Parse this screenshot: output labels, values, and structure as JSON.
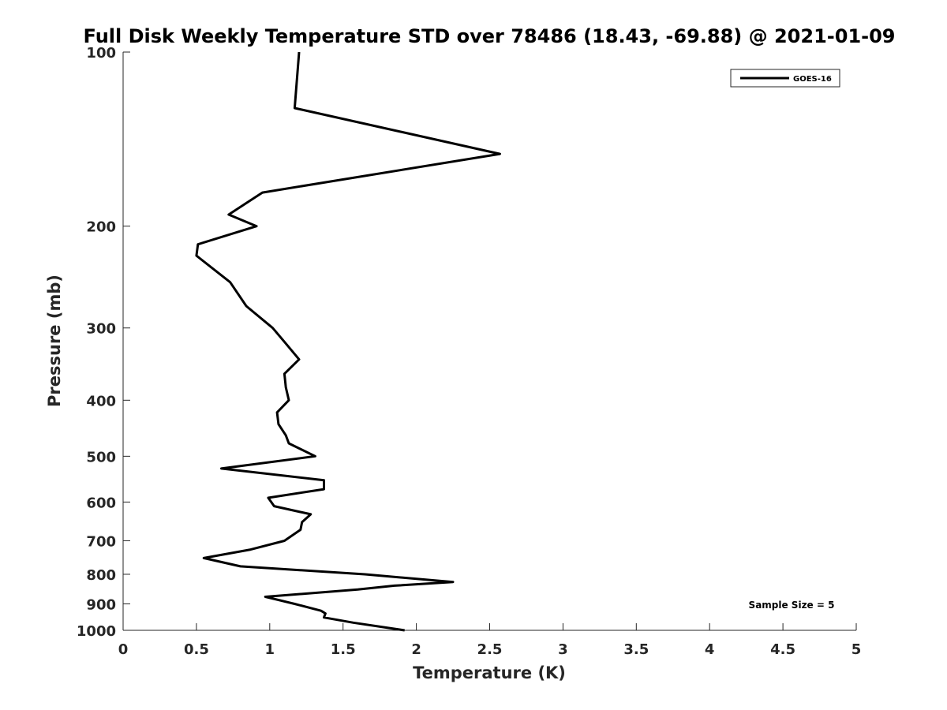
{
  "chart_data": {
    "type": "line",
    "title": "Full Disk Weekly Temperature STD over 78486 (18.43, -69.88) @ 2021-01-09",
    "xlabel": "Temperature (K)",
    "ylabel": "Pressure (mb)",
    "xlim": [
      0,
      5
    ],
    "ylim": [
      100,
      1000
    ],
    "y_scale": "log",
    "y_reversed": true,
    "x_ticks": [
      "0",
      "0.5",
      "1",
      "1.5",
      "2",
      "2.5",
      "3",
      "3.5",
      "4",
      "4.5",
      "5"
    ],
    "x_tick_values": [
      0,
      0.5,
      1,
      1.5,
      2,
      2.5,
      3,
      3.5,
      4,
      4.5,
      5
    ],
    "y_ticks": [
      "100",
      "200",
      "300",
      "400",
      "500",
      "600",
      "700",
      "800",
      "900",
      "1000"
    ],
    "y_tick_values": [
      100,
      200,
      300,
      400,
      500,
      600,
      700,
      800,
      900,
      1000
    ],
    "grid": false,
    "legend_position": "top-right",
    "series": [
      {
        "name": "GOES-16",
        "color": "#000000",
        "points": [
          [
            1.2,
            100
          ],
          [
            1.17,
            125
          ],
          [
            2.57,
            150
          ],
          [
            0.95,
            175
          ],
          [
            0.72,
            191
          ],
          [
            0.91,
            200
          ],
          [
            0.51,
            215
          ],
          [
            0.5,
            225
          ],
          [
            0.73,
            250
          ],
          [
            0.84,
            275
          ],
          [
            1.02,
            300
          ],
          [
            1.1,
            317
          ],
          [
            1.2,
            340
          ],
          [
            1.1,
            360
          ],
          [
            1.11,
            380
          ],
          [
            1.13,
            400
          ],
          [
            1.05,
            420
          ],
          [
            1.06,
            440
          ],
          [
            1.11,
            460
          ],
          [
            1.13,
            475
          ],
          [
            1.31,
            500
          ],
          [
            0.67,
            525
          ],
          [
            1.37,
            550
          ],
          [
            1.37,
            570
          ],
          [
            0.99,
            590
          ],
          [
            1.03,
            610
          ],
          [
            1.28,
            630
          ],
          [
            1.22,
            650
          ],
          [
            1.21,
            670
          ],
          [
            1.1,
            700
          ],
          [
            0.87,
            725
          ],
          [
            0.55,
            750
          ],
          [
            0.8,
            775
          ],
          [
            1.65,
            800
          ],
          [
            2.25,
            825
          ],
          [
            1.85,
            837
          ],
          [
            1.6,
            850
          ],
          [
            0.97,
            875
          ],
          [
            1.17,
            900
          ],
          [
            1.35,
            925
          ],
          [
            1.38,
            935
          ],
          [
            1.37,
            950
          ],
          [
            1.57,
            970
          ],
          [
            1.92,
            1000
          ]
        ]
      }
    ],
    "annotation": "Sample Size = 5"
  }
}
